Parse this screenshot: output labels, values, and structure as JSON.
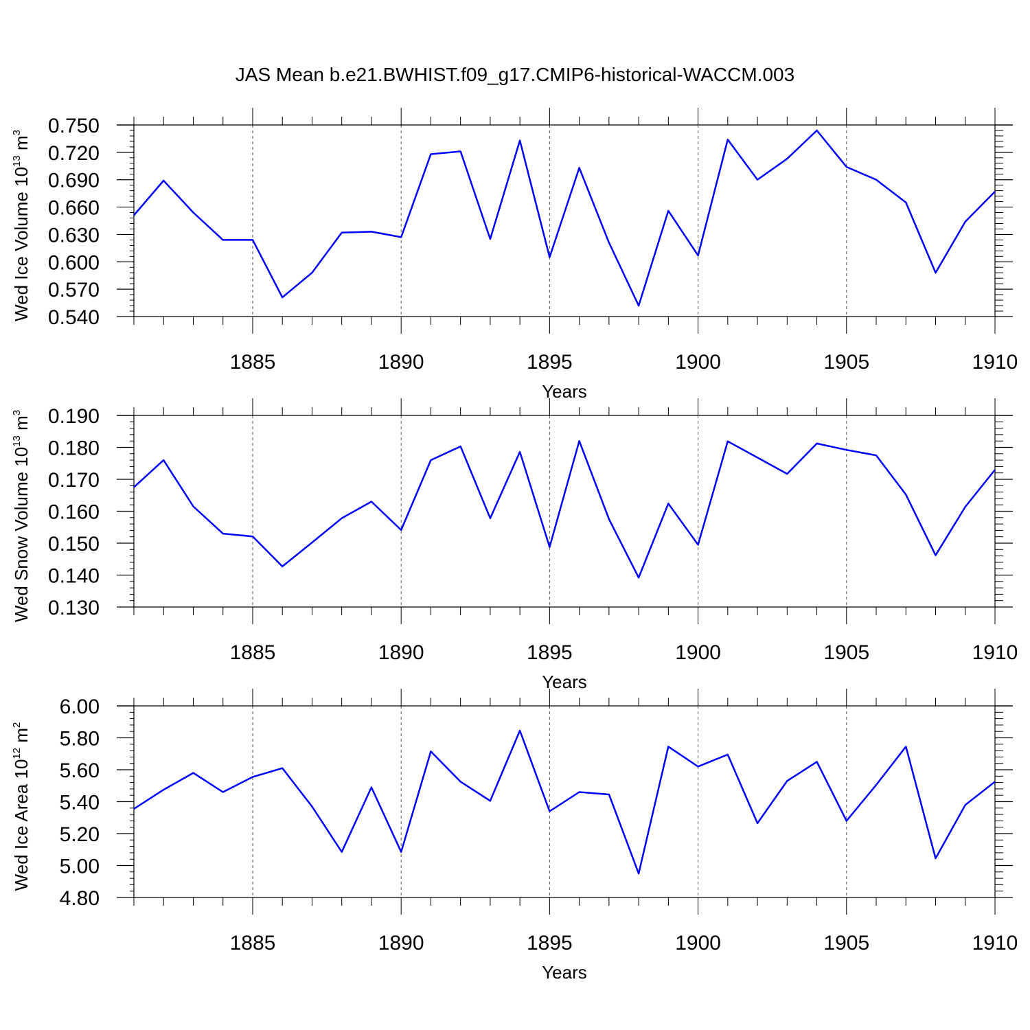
{
  "title": "JAS Mean b.e21.BWHIST.f09_g17.CMIP6-historical-WACCM.003",
  "colors": {
    "line": "#0000ff",
    "axis": "#000000",
    "grid": "#555555"
  },
  "chart_data": [
    {
      "type": "line",
      "ylabel": "Wed Ice Volume 10",
      "ylabel_exp": "13",
      "ylabel_unit": " m",
      "ylabel_unit_exp": "3",
      "xlabel": "Years",
      "xlim": [
        1881,
        1910
      ],
      "ylim": [
        0.54,
        0.75
      ],
      "yticks": [
        0.54,
        0.57,
        0.6,
        0.63,
        0.66,
        0.69,
        0.72,
        0.75
      ],
      "ytick_labels": [
        "0.540",
        "0.570",
        "0.600",
        "0.630",
        "0.660",
        "0.690",
        "0.720",
        "0.750"
      ],
      "xticks": [
        1885,
        1890,
        1895,
        1900,
        1905,
        1910
      ],
      "xtick_labels": [
        "1885",
        "1890",
        "1895",
        "1900",
        "1905",
        "1910"
      ],
      "x": [
        1881,
        1882,
        1883,
        1884,
        1885,
        1886,
        1887,
        1888,
        1889,
        1890,
        1891,
        1892,
        1893,
        1894,
        1895,
        1896,
        1897,
        1898,
        1899,
        1900,
        1901,
        1902,
        1903,
        1904,
        1905,
        1906,
        1907,
        1908,
        1909,
        1910
      ],
      "values": [
        0.651,
        0.689,
        0.654,
        0.624,
        0.624,
        0.561,
        0.588,
        0.632,
        0.633,
        0.627,
        0.718,
        0.721,
        0.625,
        0.733,
        0.605,
        0.703,
        0.621,
        0.552,
        0.656,
        0.607,
        0.734,
        0.69,
        0.713,
        0.744,
        0.704,
        0.69,
        0.665,
        0.588,
        0.644,
        0.677
      ]
    },
    {
      "type": "line",
      "ylabel": "Wed Snow Volume 10",
      "ylabel_exp": "13",
      "ylabel_unit": " m",
      "ylabel_unit_exp": "3",
      "xlabel": "Years",
      "xlim": [
        1881,
        1910
      ],
      "ylim": [
        0.13,
        0.19
      ],
      "yticks": [
        0.13,
        0.14,
        0.15,
        0.16,
        0.17,
        0.18,
        0.19
      ],
      "ytick_labels": [
        "0.130",
        "0.140",
        "0.150",
        "0.160",
        "0.170",
        "0.180",
        "0.190"
      ],
      "xticks": [
        1885,
        1890,
        1895,
        1900,
        1905,
        1910
      ],
      "xtick_labels": [
        "1885",
        "1890",
        "1895",
        "1900",
        "1905",
        "1910"
      ],
      "x": [
        1881,
        1882,
        1883,
        1884,
        1885,
        1886,
        1887,
        1888,
        1889,
        1890,
        1891,
        1892,
        1893,
        1894,
        1895,
        1896,
        1897,
        1898,
        1899,
        1900,
        1901,
        1902,
        1903,
        1904,
        1905,
        1906,
        1907,
        1908,
        1909,
        1910
      ],
      "values": [
        0.1675,
        0.176,
        0.1615,
        0.153,
        0.1521,
        0.1427,
        0.1502,
        0.1578,
        0.163,
        0.1541,
        0.176,
        0.1803,
        0.1578,
        0.1786,
        0.1488,
        0.182,
        0.1575,
        0.1392,
        0.1624,
        0.1495,
        0.1819,
        0.1768,
        0.1717,
        0.1812,
        0.1792,
        0.1775,
        0.1652,
        0.1462,
        0.1614,
        0.173
      ]
    },
    {
      "type": "line",
      "ylabel": "Wed Ice Area 10",
      "ylabel_exp": "12",
      "ylabel_unit": " m",
      "ylabel_unit_exp": "2",
      "xlabel": "Years",
      "xlim": [
        1881,
        1910
      ],
      "ylim": [
        4.8,
        6.0
      ],
      "yticks": [
        4.8,
        5.0,
        5.2,
        5.4,
        5.6,
        5.8,
        6.0
      ],
      "ytick_labels": [
        "4.80",
        "5.00",
        "5.20",
        "5.40",
        "5.60",
        "5.80",
        "6.00"
      ],
      "xticks": [
        1885,
        1890,
        1895,
        1900,
        1905,
        1910
      ],
      "xtick_labels": [
        "1885",
        "1890",
        "1895",
        "1900",
        "1905",
        "1910"
      ],
      "x": [
        1881,
        1882,
        1883,
        1884,
        1885,
        1886,
        1887,
        1888,
        1889,
        1890,
        1891,
        1892,
        1893,
        1894,
        1895,
        1896,
        1897,
        1898,
        1899,
        1900,
        1901,
        1902,
        1903,
        1904,
        1905,
        1906,
        1907,
        1908,
        1909,
        1910
      ],
      "values": [
        5.355,
        5.475,
        5.58,
        5.46,
        5.555,
        5.61,
        5.37,
        5.085,
        5.49,
        5.085,
        5.715,
        5.525,
        5.405,
        5.845,
        5.34,
        5.46,
        5.445,
        4.95,
        5.745,
        5.62,
        5.695,
        5.265,
        5.53,
        5.65,
        5.28,
        5.505,
        5.745,
        5.045,
        5.38,
        5.525
      ]
    }
  ]
}
